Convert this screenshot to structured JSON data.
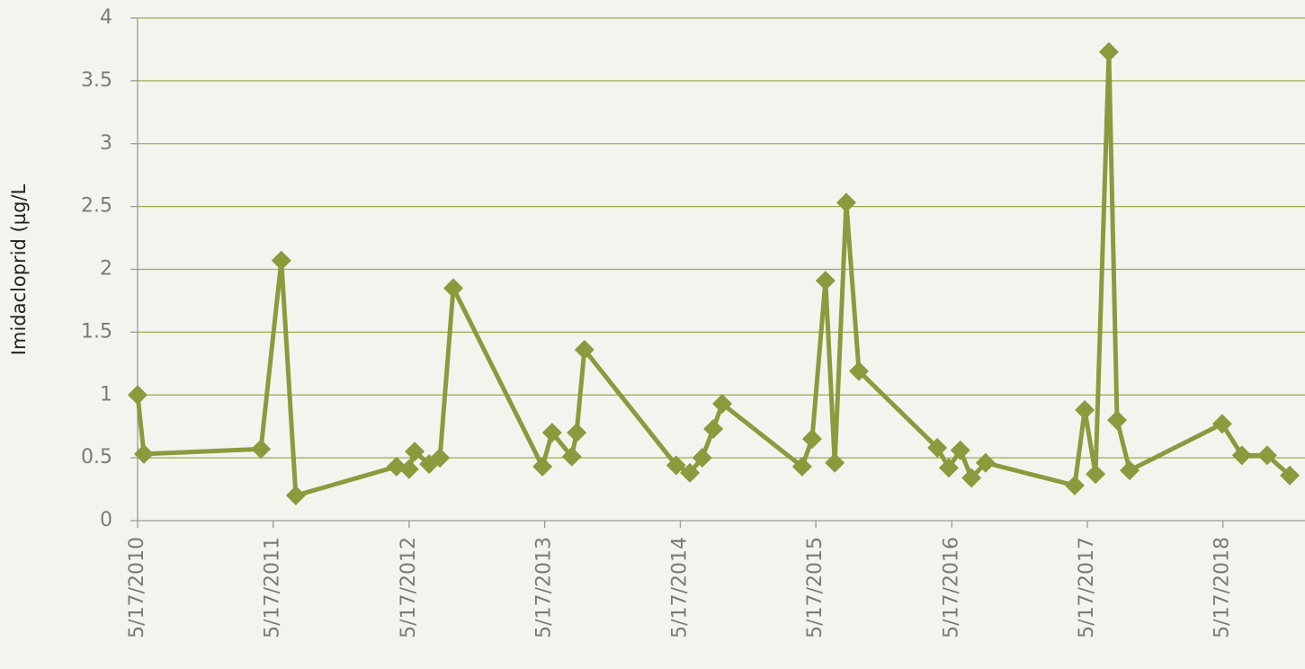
{
  "chart_data": {
    "type": "line",
    "y_label": "Imidacloprid (µg/L",
    "x": [
      "5/17/2010",
      "6/3/2010",
      "4/14/2011",
      "6/8/2011",
      "7/17/2011",
      "4/13/2012",
      "5/17/2012",
      "6/1/2012",
      "7/10/2012",
      "8/8/2012",
      "9/13/2012",
      "5/11/2013",
      "6/6/2013",
      "7/29/2013",
      "8/11/2013",
      "9/1/2013",
      "5/6/2014",
      "6/12/2014",
      "7/15/2014",
      "8/14/2014",
      "9/7/2014",
      "4/10/2015",
      "5/7/2015",
      "6/12/2015",
      "7/7/2015",
      "8/7/2015",
      "9/10/2015",
      "4/8/2016",
      "5/9/2016",
      "6/9/2016",
      "7/9/2016",
      "8/16/2016",
      "4/13/2017",
      "5/10/2017",
      "6/8/2017",
      "7/14/2017",
      "8/5/2017",
      "9/8/2017",
      "5/15/2018",
      "7/7/2018",
      "9/13/2018",
      "11/13/2018"
    ],
    "values": [
      1.0,
      0.53,
      0.57,
      2.07,
      0.2,
      0.43,
      0.41,
      0.55,
      0.45,
      0.5,
      1.85,
      0.43,
      0.7,
      0.51,
      0.7,
      1.36,
      0.44,
      0.38,
      0.5,
      0.73,
      0.93,
      0.43,
      0.65,
      1.91,
      0.46,
      2.53,
      1.19,
      0.58,
      0.42,
      0.56,
      0.34,
      0.46,
      0.28,
      0.88,
      0.37,
      3.73,
      0.8,
      0.4,
      0.77,
      0.52,
      0.52,
      0.36
    ],
    "color": "#8c9a3e",
    "marker": "diamond",
    "xlim": [
      "5/17/2010",
      "12/24/2018"
    ],
    "xticks": [
      "5/17/2010",
      "5/17/2011",
      "5/17/2012",
      "5/17/2013",
      "5/17/2014",
      "5/17/2015",
      "5/17/2016",
      "5/17/2017",
      "5/17/2018"
    ],
    "ylim": [
      0,
      4
    ],
    "yticks": [
      0,
      0.5,
      1,
      1.5,
      2,
      2.5,
      3,
      3.5,
      4
    ],
    "grid": true
  }
}
